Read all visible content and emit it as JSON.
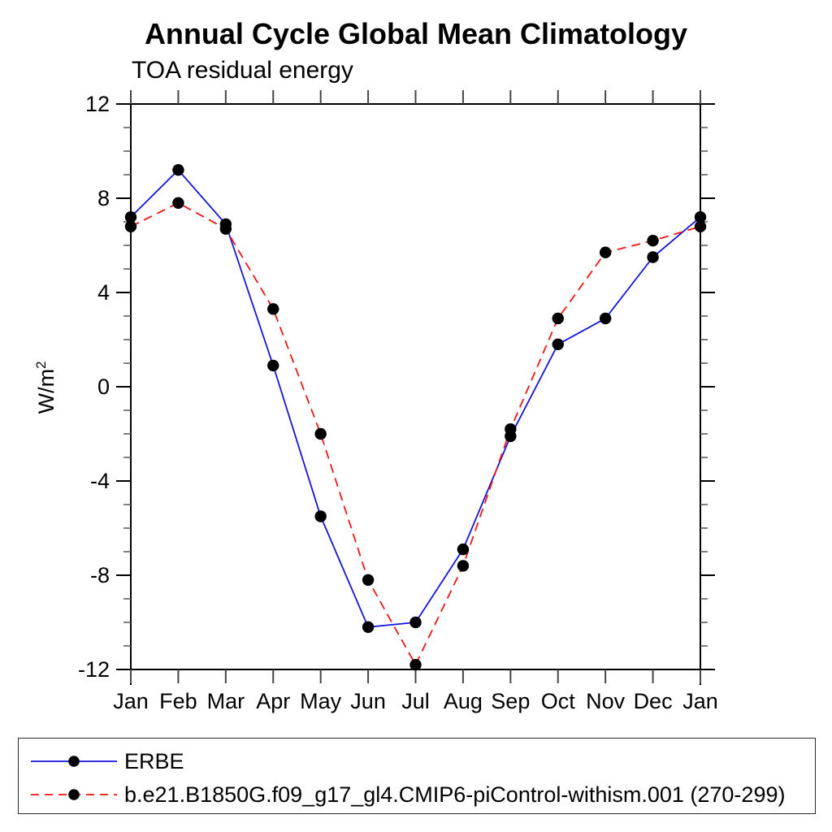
{
  "chart_data": {
    "type": "line",
    "title": "Annual Cycle Global Mean Climatology",
    "subtitle": "TOA residual energy",
    "ylabel": "W/m2",
    "ylabel_base": "W/m",
    "ylabel_exp": "2",
    "categories": [
      "Jan",
      "Feb",
      "Mar",
      "Apr",
      "May",
      "Jun",
      "Jul",
      "Aug",
      "Sep",
      "Oct",
      "Nov",
      "Dec",
      "Jan"
    ],
    "series": [
      {
        "name": "ERBE",
        "color": "#1414dc",
        "style": "solid",
        "marker": "circle",
        "marker_color": "#000000",
        "values": [
          7.2,
          9.2,
          6.9,
          0.9,
          -5.5,
          -10.2,
          -10.0,
          -6.9,
          -2.1,
          1.8,
          2.9,
          5.5,
          7.2
        ]
      },
      {
        "name": "b.e21.B1850G.f09_g17_gl4.CMIP6-piControl-withism.001 (270-299)",
        "color": "#f01414",
        "style": "dashed",
        "marker": "circle",
        "marker_color": "#000000",
        "values": [
          6.8,
          7.8,
          6.7,
          3.3,
          -2.0,
          -8.2,
          -11.8,
          -7.6,
          -1.8,
          2.9,
          5.7,
          6.2,
          6.8
        ]
      }
    ],
    "ylim": [
      -12,
      12
    ],
    "ytick_major": [
      -12,
      -8,
      -4,
      0,
      4,
      8,
      12
    ],
    "ytick_minor_step": 1,
    "grid": false,
    "legend_position": "bottom-box",
    "axis_color": "#000000"
  }
}
